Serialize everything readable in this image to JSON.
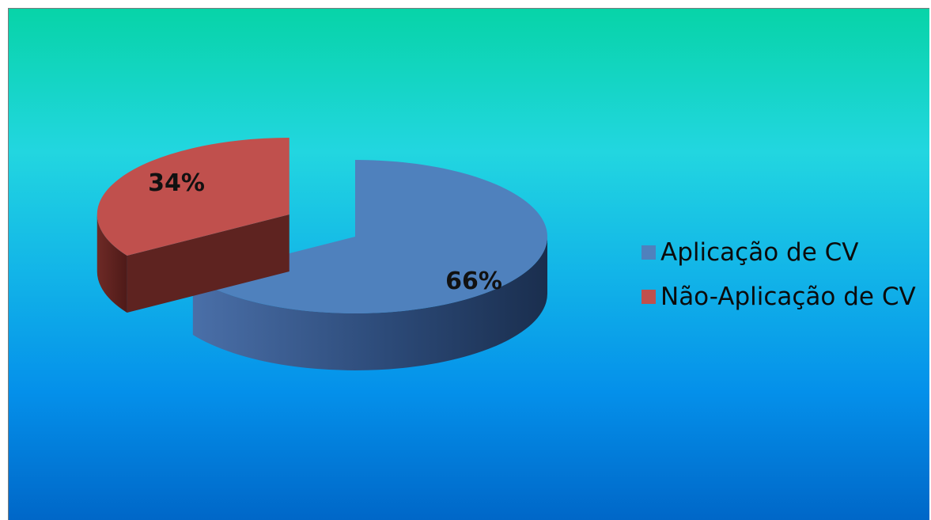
{
  "chart_data": {
    "type": "pie",
    "title": "",
    "categories": [
      "Aplicação de CV",
      "Não-Aplicação de CV"
    ],
    "values": [
      66,
      34
    ],
    "data_labels": [
      "66%",
      "34%"
    ],
    "colors": [
      "#4f81bd",
      "#c0504d"
    ],
    "exploded": [
      false,
      true
    ],
    "style": "3d",
    "legend_position": "right"
  }
}
